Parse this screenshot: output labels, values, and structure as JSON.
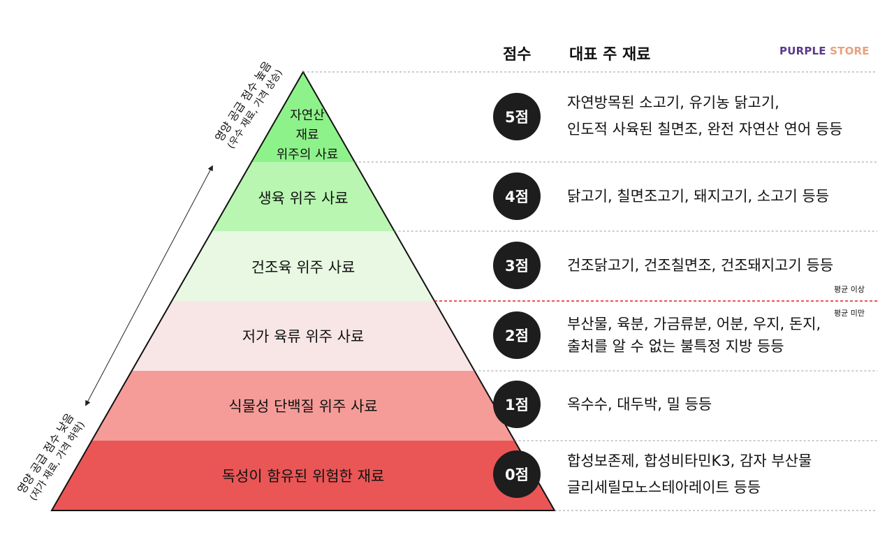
{
  "header": {
    "score_label": "점수",
    "ingredient_label": "대표 주 재료",
    "brand_part1": "PURPLE ",
    "brand_part2": "STORE"
  },
  "colors": {
    "tier5": "#8ef28a",
    "tier4": "#b8f6b1",
    "tier3": "#e8f8e2",
    "tier2": "#f8e6e6",
    "tier1": "#f59c98",
    "tier0": "#ea5656",
    "circle": "#1d1d1d",
    "threshold_line": "#e01b1b",
    "brand_purple": "#5a3a8c",
    "brand_peach": "#e8a07d"
  },
  "tiers": [
    {
      "score": "5점",
      "name_lines": [
        "자연산",
        "재료",
        "위주의 사료"
      ],
      "ingredients": [
        "자연방목된 소고기, 유기농 닭고기,",
        "인도적 사육된 칠면조, 완전 자연산 연어 등등"
      ]
    },
    {
      "score": "4점",
      "name_lines": [
        "생육 위주 사료"
      ],
      "ingredients": [
        "닭고기, 칠면조고기, 돼지고기, 소고기 등등"
      ]
    },
    {
      "score": "3점",
      "name_lines": [
        "건조육 위주 사료"
      ],
      "ingredients": [
        "건조닭고기, 건조칠면조, 건조돼지고기 등등"
      ]
    },
    {
      "score": "2점",
      "name_lines": [
        "저가 육류 위주 사료"
      ],
      "ingredients": [
        "부산물, 육분, 가금류분, 어분, 우지, 돈지,",
        "출처를 알 수 없는 불특정 지방 등등"
      ]
    },
    {
      "score": "1점",
      "name_lines": [
        "식물성 단백질 위주 사료"
      ],
      "ingredients": [
        "옥수수, 대두박, 밀 등등"
      ]
    },
    {
      "score": "0점",
      "name_lines": [
        "독성이 함유된 위험한 재료"
      ],
      "ingredients": [
        "합성보존제, 합성비타민K3, 감자 부산물",
        "글리세릴모노스테아레이트 등등"
      ]
    }
  ],
  "threshold": {
    "above_label": "평균 이상",
    "below_label": "평균 미만"
  },
  "axis": {
    "high_main": "영양 공급 점수 높음",
    "high_sub": "(우수 재료, 가격 상승)",
    "low_main": "영양 공급 점수 낮음",
    "low_sub": "(저가 재료, 가격 하락)"
  }
}
